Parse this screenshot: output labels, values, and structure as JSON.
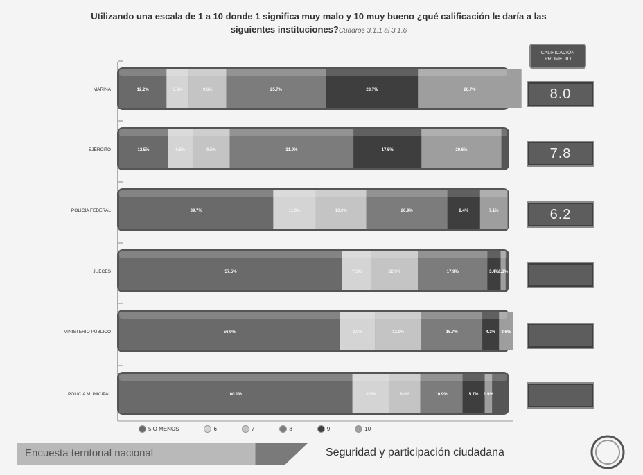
{
  "title": {
    "line1": "Utilizando una escala de 1 a 10 donde 1 significa muy malo y 10 muy bueno ¿qué calificación le daría a las",
    "line2": "siguientes instituciones?",
    "source": "Cuadros 3.1.1 al 3.1.6"
  },
  "rating_header": {
    "line1": "CALIFICACIÓN",
    "line2": "PROMEDIO"
  },
  "ratings": [
    "8.0",
    "7.8",
    "6.2",
    "",
    "",
    ""
  ],
  "colors": {
    "le5": "#6a6a6a",
    "c6": "#d4d4d4",
    "c7": "#c4c4c4",
    "c8": "#7c7c7c",
    "c9": "#3e3e3e",
    "c10": "#9e9e9e"
  },
  "legend": {
    "le5": "5 O MENOS",
    "c6": "6",
    "c7": "7",
    "c8": "8",
    "c9": "9",
    "c10": "10"
  },
  "chart_data": {
    "type": "bar",
    "orientation": "horizontal",
    "stacked": true,
    "categories": [
      "MARINA",
      "EJÉRCITO",
      "POLICÍA FEDERAL",
      "JUECES",
      "MINISTERIO PÚBLICO",
      "POLICÍA MUNICIPAL"
    ],
    "series": [
      {
        "name": "5 O MENOS",
        "key": "le5",
        "values": [
          12.2,
          12.5,
          39.7,
          57.5,
          56.9,
          60.1
        ]
      },
      {
        "name": "6",
        "key": "c6",
        "values": [
          5.8,
          6.5,
          11.0,
          7.5,
          9.0,
          9.5
        ]
      },
      {
        "name": "7",
        "key": "c7",
        "values": [
          9.6,
          9.5,
          13.0,
          12.0,
          12.0,
          8.0
        ]
      },
      {
        "name": "8",
        "key": "c8",
        "values": [
          25.7,
          31.9,
          20.9,
          17.9,
          15.7,
          10.9
        ]
      },
      {
        "name": "9",
        "key": "c9",
        "values": [
          23.7,
          17.5,
          8.4,
          3.4,
          4.3,
          5.7
        ]
      },
      {
        "name": "10",
        "key": "c10",
        "values": [
          26.7,
          20.6,
          7.1,
          1.3,
          3.6,
          1.9
        ]
      }
    ],
    "data_labels": [
      [
        "12.2%",
        "5.8%",
        "9.6%",
        "25.7%",
        "23.7%",
        "26.7%"
      ],
      [
        "12.5%",
        "6.5%",
        "9.5%",
        "31.9%",
        "17.5%",
        "20.6%"
      ],
      [
        "39.7%",
        "11.0%",
        "13.0%",
        "20.9%",
        "8.4%",
        "7.1%"
      ],
      [
        "57.5%",
        "7.5%",
        "12.0%",
        "17.9%",
        "3.4%",
        "1.3%"
      ],
      [
        "56.9%",
        "9.0%",
        "12.0%",
        "15.7%",
        "4.3%",
        "3.6%"
      ],
      [
        "60.1%",
        "9.5%",
        "8.0%",
        "10.9%",
        "5.7%",
        "1.9%"
      ]
    ],
    "xlim": [
      0,
      100
    ]
  }
}
